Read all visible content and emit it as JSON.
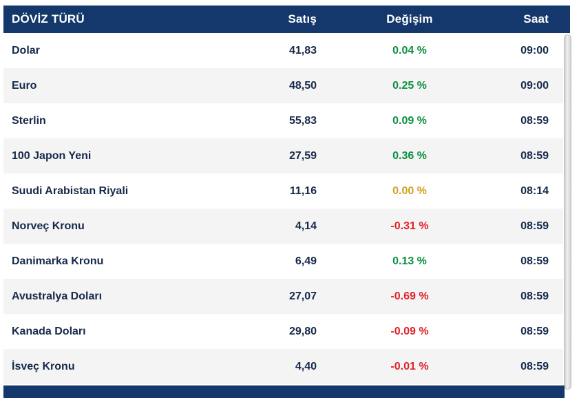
{
  "table": {
    "columns": [
      {
        "key": "name",
        "label": "DÖVİZ TÜRÜ"
      },
      {
        "key": "satis",
        "label": "Satış"
      },
      {
        "key": "degisim",
        "label": "Değişim"
      },
      {
        "key": "saat",
        "label": "Saat"
      }
    ],
    "rows": [
      {
        "name": "Dolar",
        "satis": "41,83",
        "degisim": "0.04 %",
        "trend": "up",
        "saat": "09:00"
      },
      {
        "name": "Euro",
        "satis": "48,50",
        "degisim": "0.25 %",
        "trend": "up",
        "saat": "09:00"
      },
      {
        "name": "Sterlin",
        "satis": "55,83",
        "degisim": "0.09 %",
        "trend": "up",
        "saat": "08:59"
      },
      {
        "name": "100 Japon Yeni",
        "satis": "27,59",
        "degisim": "0.36 %",
        "trend": "up",
        "saat": "08:59"
      },
      {
        "name": "Suudi Arabistan Riyali",
        "satis": "11,16",
        "degisim": "0.00 %",
        "trend": "flat",
        "saat": "08:14"
      },
      {
        "name": "Norveç Kronu",
        "satis": "4,14",
        "degisim": "-0.31 %",
        "trend": "down",
        "saat": "08:59"
      },
      {
        "name": "Danimarka Kronu",
        "satis": "6,49",
        "degisim": "0.13 %",
        "trend": "up",
        "saat": "08:59"
      },
      {
        "name": "Avustralya Doları",
        "satis": "27,07",
        "degisim": "-0.69 %",
        "trend": "down",
        "saat": "08:59"
      },
      {
        "name": "Kanada Doları",
        "satis": "29,80",
        "degisim": "-0.09 %",
        "trend": "down",
        "saat": "08:59"
      },
      {
        "name": "İsveç Kronu",
        "satis": "4,40",
        "degisim": "-0.01 %",
        "trend": "down",
        "saat": "08:59"
      }
    ]
  },
  "colors": {
    "header_bg": "#14386c",
    "up_green": "#0a8f3f",
    "down_red": "#e01f28",
    "flat_amber": "#cfa11f",
    "row_alt_bg": "#f4f4f4",
    "body_text": "#16294a"
  }
}
